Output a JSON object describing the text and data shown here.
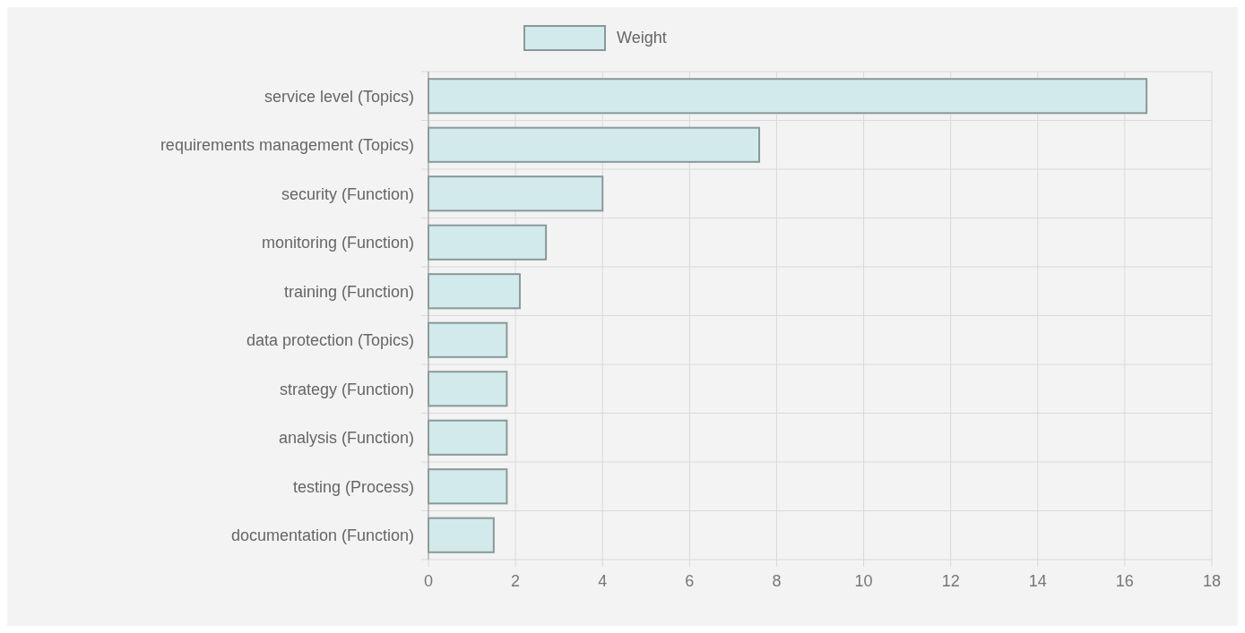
{
  "chart_data": {
    "type": "bar",
    "orientation": "horizontal",
    "categories": [
      "service level (Topics)",
      "requirements management (Topics)",
      "security (Function)",
      "monitoring (Function)",
      "training (Function)",
      "data protection (Topics)",
      "strategy (Function)",
      "analysis (Function)",
      "testing (Process)",
      "documentation (Function)"
    ],
    "series": [
      {
        "name": "Weight",
        "color": "#d2eaeb",
        "values": [
          16.5,
          7.6,
          4.0,
          2.7,
          2.1,
          1.8,
          1.8,
          1.8,
          1.8,
          1.5
        ]
      }
    ],
    "xlim": [
      0,
      18
    ],
    "xticks": [
      0,
      2,
      4,
      6,
      8,
      10,
      12,
      14,
      16,
      18
    ],
    "grid": true,
    "legend": "top"
  }
}
